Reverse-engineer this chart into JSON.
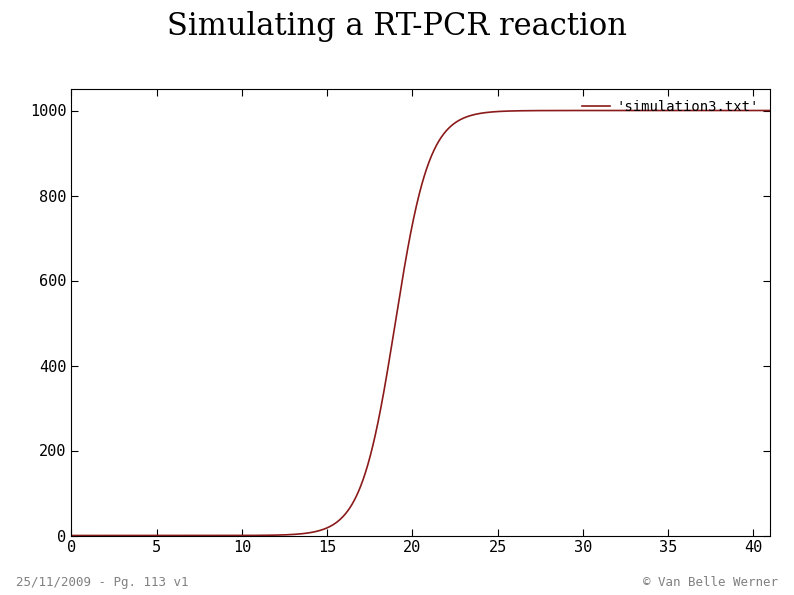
{
  "title": "Simulating a RT-PCR reaction",
  "title_fontsize": 22,
  "legend_label": "'simulation3.txt'",
  "line_color": "#8b1a1a",
  "line_width": 1.2,
  "x_min": 0,
  "x_max": 41,
  "y_min": 0,
  "y_max": 1050,
  "x_ticks": [
    0,
    5,
    10,
    15,
    20,
    25,
    30,
    35,
    40
  ],
  "y_ticks": [
    0,
    200,
    400,
    600,
    800,
    1000
  ],
  "sigmoid_L": 1000,
  "sigmoid_k": 1.0,
  "sigmoid_x0": 19.0,
  "background_color": "#ffffff",
  "plot_bg_color": "#ffffff",
  "footer_left": "25/11/2009 - Pg. 113 v1",
  "footer_right": "© Van Belle Werner",
  "footer_fontsize": 9,
  "tick_labelsize": 11
}
